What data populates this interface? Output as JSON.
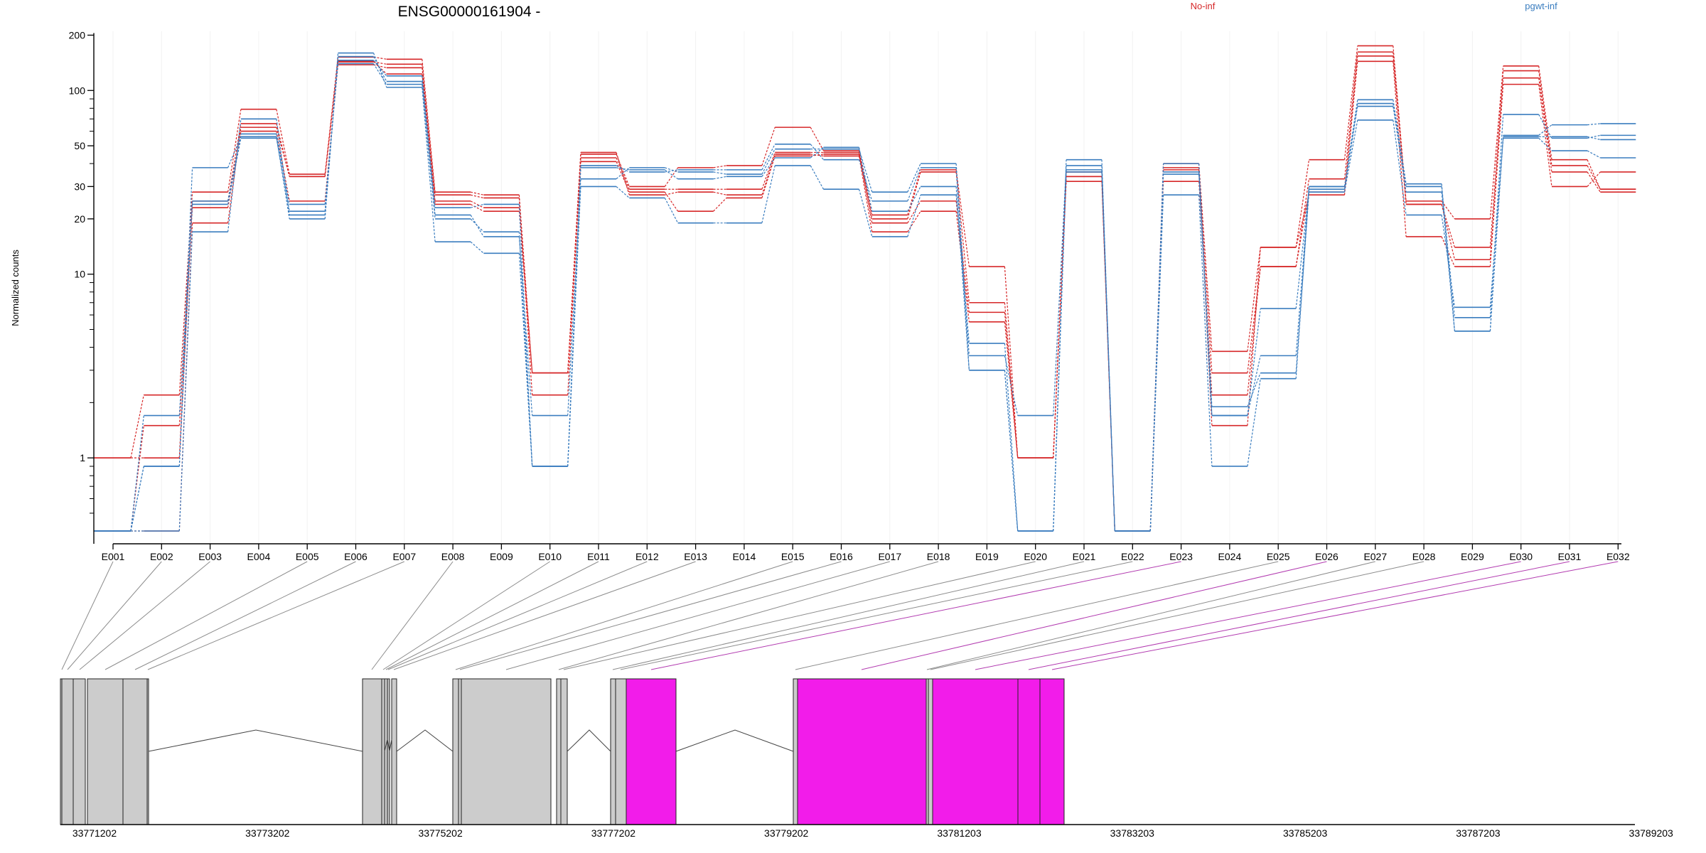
{
  "chart_data": {
    "type": "line",
    "title": "ENSG00000161904 -",
    "ylabel": "Normalized counts",
    "yscale": "log",
    "ylim": [
      0.4,
      210
    ],
    "yticks": [
      1,
      10,
      20,
      30,
      50,
      100,
      200
    ],
    "ytick_labels": [
      "1",
      "10",
      "20",
      "30",
      "50",
      "100",
      "200"
    ],
    "categories": [
      "E001",
      "E002",
      "E003",
      "E004",
      "E005",
      "E006",
      "E007",
      "E008",
      "E009",
      "E010",
      "E011",
      "E012",
      "E013",
      "E014",
      "E015",
      "E016",
      "E017",
      "E018",
      "E019",
      "E020",
      "E021",
      "E022",
      "E023",
      "E024",
      "E025",
      "E026",
      "E027",
      "E028",
      "E029",
      "E030",
      "E031",
      "E032"
    ],
    "legend": [
      {
        "label": "No-inf",
        "color": "#d62728"
      },
      {
        "label": "pgwt-inf",
        "color": "#3a7dbf"
      }
    ],
    "series": [
      {
        "group": "No-inf",
        "color": "#d62728",
        "values": [
          1.0,
          2.2,
          28,
          79,
          35,
          152,
          148,
          28,
          27,
          2.9,
          45,
          30,
          38,
          39,
          63,
          47,
          21,
          37,
          11,
          1.0,
          34,
          0.4,
          40,
          3.8,
          14,
          42,
          175,
          25,
          20,
          136,
          42,
          29
        ]
      },
      {
        "group": "No-inf",
        "color": "#d62728",
        "values": [
          1.0,
          1.0,
          25,
          66,
          34,
          143,
          139,
          27,
          26,
          2.2,
          43,
          29,
          29,
          29,
          46,
          46,
          20,
          36,
          7.0,
          1.0,
          32,
          0.4,
          37,
          2.9,
          11,
          33,
          162,
          24,
          14,
          128,
          39,
          29
        ]
      },
      {
        "group": "No-inf",
        "color": "#d62728",
        "values": [
          0.4,
          1.5,
          23,
          60,
          25,
          138,
          133,
          25,
          23,
          2.9,
          41,
          28,
          22,
          26,
          44,
          45,
          19,
          25,
          6.2,
          1.0,
          34,
          0.4,
          32,
          2.2,
          11,
          28,
          154,
          24,
          12,
          117,
          36,
          28
        ]
      },
      {
        "group": "No-inf",
        "color": "#d62728",
        "values": [
          0.4,
          0.4,
          19,
          63,
          34,
          144,
          123,
          24,
          22,
          2.9,
          46,
          27,
          28,
          27,
          45,
          44,
          17,
          22,
          5.5,
          1.0,
          36,
          0.4,
          38,
          1.5,
          14,
          27,
          144,
          16,
          11,
          108,
          30,
          36
        ]
      },
      {
        "group": "pgwt-inf",
        "color": "#3a7dbf",
        "values": [
          0.4,
          0.9,
          38,
          56,
          20,
          160,
          104,
          15,
          13,
          0.9,
          30,
          26,
          19,
          19,
          39,
          29,
          16,
          27,
          4.2,
          0.4,
          42,
          0.4,
          27,
          0.9,
          2.7,
          30,
          89,
          31,
          4.9,
          57,
          65,
          66
        ]
      },
      {
        "group": "pgwt-inf",
        "color": "#3a7dbf",
        "values": [
          0.4,
          0.4,
          17,
          70,
          21,
          153,
          112,
          21,
          16,
          1.7,
          33,
          38,
          36,
          35,
          48,
          48,
          28,
          40,
          3.6,
          1.7,
          39,
          0.4,
          40,
          1.7,
          3.6,
          30,
          85,
          30,
          5.8,
          74,
          55,
          57
        ]
      },
      {
        "group": "pgwt-inf",
        "color": "#3a7dbf",
        "values": [
          0.4,
          1.7,
          24,
          55,
          22,
          146,
          120,
          23,
          24,
          0.9,
          39,
          36,
          37,
          37,
          51,
          42,
          25,
          38,
          3.0,
          0.4,
          37,
          0.4,
          35,
          1.9,
          2.9,
          28,
          69,
          21,
          6.6,
          55,
          47,
          43
        ]
      },
      {
        "group": "pgwt-inf",
        "color": "#3a7dbf",
        "values": [
          0.4,
          0.9,
          25,
          58,
          24,
          140,
          108,
          20,
          17,
          0.9,
          38,
          37,
          33,
          34,
          43,
          49,
          22,
          30,
          3.0,
          0.4,
          36,
          0.4,
          36,
          1.7,
          6.5,
          29,
          82,
          28,
          4.9,
          56,
          56,
          54
        ]
      }
    ],
    "exon_bounds": [
      [
        85,
        87
      ],
      [
        87,
        103
      ],
      [
        103,
        120
      ],
      [
        123,
        173
      ],
      [
        173,
        207
      ],
      [
        207,
        209
      ],
      [
        510,
        537
      ],
      [
        537,
        541
      ],
      [
        541,
        545
      ],
      [
        545,
        548
      ],
      [
        551,
        558
      ],
      [
        637,
        645
      ],
      [
        645,
        649
      ],
      [
        649,
        775
      ],
      [
        783,
        789
      ],
      [
        789,
        798
      ],
      [
        859,
        866
      ],
      [
        866,
        881
      ],
      [
        881,
        951
      ],
      [
        1116,
        1122
      ],
      [
        1122,
        1303
      ],
      [
        1303,
        1306
      ],
      [
        1306,
        1312
      ],
      [
        1312,
        1432
      ],
      [
        1432,
        1463
      ],
      [
        1463,
        1497
      ]
    ],
    "exon_link_targets": [
      87,
      95,
      112,
      148,
      190,
      208,
      523,
      539,
      543,
      546,
      554,
      641,
      647,
      712,
      786,
      793,
      862,
      873,
      916,
      1119,
      1212,
      1304,
      1309,
      1372,
      1447,
      1480
    ],
    "exon_flags": [
      "no",
      "no",
      "no",
      "no",
      "no",
      "no",
      "no",
      "no",
      "no",
      "no",
      "no",
      "no",
      "no",
      "no",
      "no",
      "no",
      "no",
      "no",
      "yes",
      "no",
      "yes",
      "no",
      "no",
      "yes",
      "yes",
      "yes"
    ],
    "exon_colors": {
      "no": "#cccccc",
      "yes": "#f21cea"
    },
    "introns": [
      [
        209,
        510,
        360
      ],
      [
        558,
        637,
        598
      ],
      [
        798,
        859,
        829
      ],
      [
        951,
        1116,
        1034
      ]
    ],
    "genomic_ticks": [
      "33771202",
      "33773202",
      "33775202",
      "33777202",
      "33779202",
      "33781203",
      "33783203",
      "33785203",
      "33787203",
      "33789203"
    ]
  }
}
